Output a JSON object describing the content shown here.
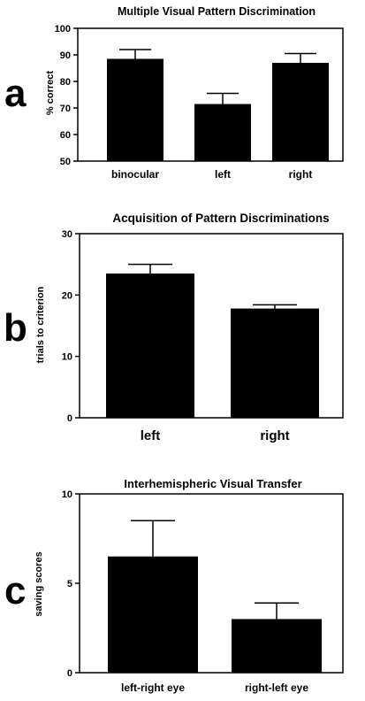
{
  "chart_data": [
    {
      "type": "bar",
      "panel_label": "a",
      "title": "Multiple Visual Pattern Discrimination",
      "ylabel": "% correct",
      "xlabel": "",
      "ylim": [
        50,
        100
      ],
      "yticks": [
        50,
        60,
        70,
        80,
        90,
        100
      ],
      "categories": [
        "binocular",
        "left",
        "right"
      ],
      "values": [
        88.5,
        71.5,
        87
      ],
      "errors": [
        3.5,
        4,
        3.5
      ]
    },
    {
      "type": "bar",
      "panel_label": "b",
      "title": "Acquisition of Pattern Discriminations",
      "ylabel": "trials to criterion",
      "xlabel": "",
      "ylim": [
        0,
        30
      ],
      "yticks": [
        0,
        10,
        20,
        30
      ],
      "categories": [
        "left",
        "right"
      ],
      "values": [
        23.5,
        17.8
      ],
      "errors": [
        1.5,
        0.6
      ]
    },
    {
      "type": "bar",
      "panel_label": "c",
      "title": "Interhemispheric Visual Transfer",
      "ylabel": "saving scores",
      "xlabel": "",
      "ylim": [
        0,
        10
      ],
      "yticks": [
        0,
        5,
        10
      ],
      "categories": [
        "left-right eye",
        "right-left eye"
      ],
      "values": [
        6.5,
        3
      ],
      "errors": [
        2,
        0.9
      ]
    }
  ]
}
